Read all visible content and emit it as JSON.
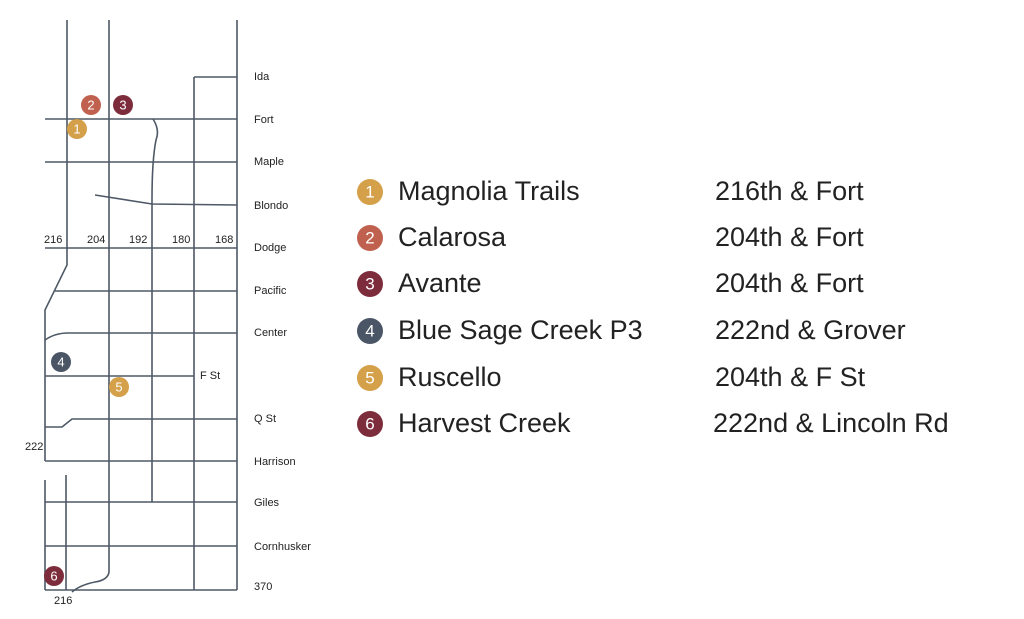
{
  "streets": [
    "Ida",
    "Fort",
    "Maple",
    "Blondo",
    "Dodge",
    "Pacific",
    "Center",
    "F St",
    "Q St",
    "Harrison",
    "Giles",
    "Cornhusker",
    "370"
  ],
  "avenues": [
    "216",
    "204",
    "192",
    "180",
    "168",
    "222",
    "216"
  ],
  "sites": [
    {
      "number": "1",
      "name": "Magnolia Trails",
      "location": "216th & Fort",
      "color": "#d4a04a"
    },
    {
      "number": "2",
      "name": "Calarosa",
      "location": "204th & Fort",
      "color": "#c0614f"
    },
    {
      "number": "3",
      "name": "Avante",
      "location": "204th & Fort",
      "color": "#7d2c3b"
    },
    {
      "number": "4",
      "name": "Blue Sage Creek P3",
      "location": "222nd & Grover",
      "color": "#4a5566"
    },
    {
      "number": "5",
      "name": "Ruscello",
      "location": "204th & F St",
      "color": "#d4a04a"
    },
    {
      "number": "6",
      "name": "Harvest Creek",
      "location": "222nd & Lincoln Rd",
      "color": "#7d2c3b"
    }
  ]
}
